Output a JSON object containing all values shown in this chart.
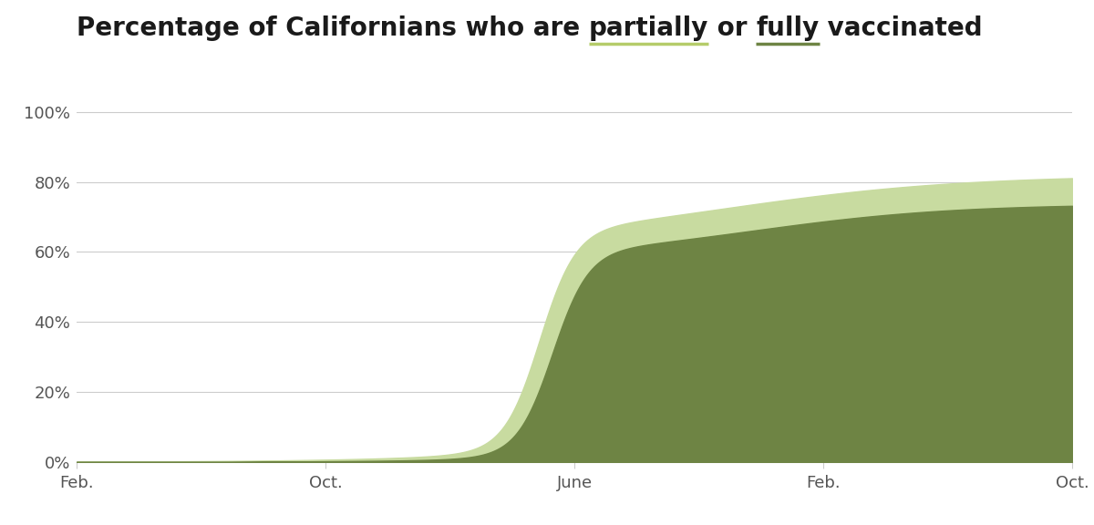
{
  "title_prefix": "Percentage of Californians who are ",
  "title_partial": "partially",
  "title_mid": " or ",
  "title_full": "fully",
  "title_suffix": " vaccinated",
  "partial_color": "#c8dba0",
  "full_color": "#6e8444",
  "partial_underline_color": "#b5cc6a",
  "full_underline_color": "#6e8444",
  "bg_color": "#ffffff",
  "grid_color": "#cccccc",
  "text_color": "#1a1a1a",
  "tick_label_color": "#555555",
  "ylim": [
    0,
    105
  ],
  "yticks": [
    0,
    20,
    40,
    60,
    80,
    100
  ],
  "ytick_labels": [
    "0%",
    "20%",
    "40%",
    "60%",
    "80%",
    "100%"
  ],
  "xtick_labels": [
    "Feb.",
    "Oct.",
    "June",
    "Feb.",
    "Oct."
  ],
  "xtick_positions": [
    0.0,
    0.25,
    0.5,
    0.75,
    1.0
  ],
  "title_fontsize": 20,
  "tick_fontsize": 13,
  "partial_final": 81.1,
  "full_final": 73.2
}
